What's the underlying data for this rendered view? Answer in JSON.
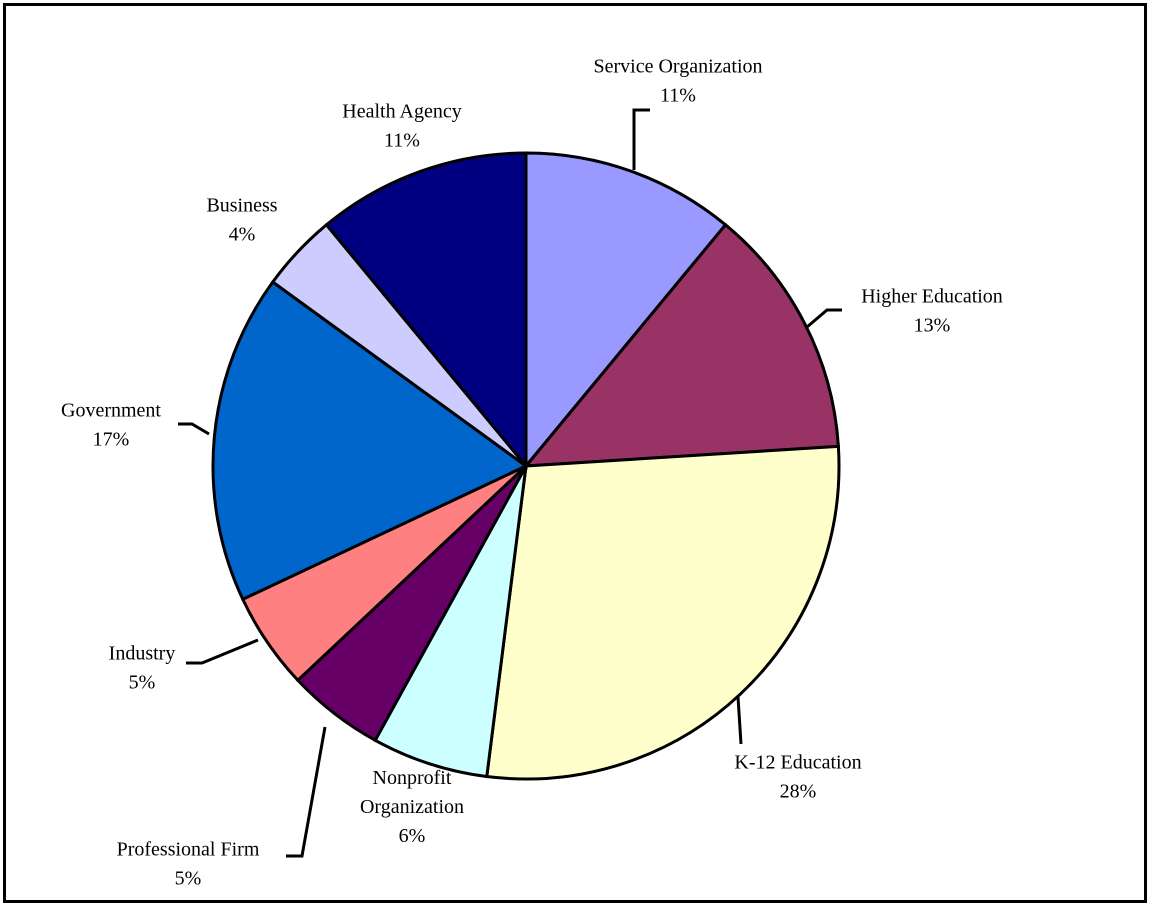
{
  "chart_data": {
    "type": "pie",
    "title": "",
    "start_angle_deg": 0,
    "direction": "clockwise",
    "slices": [
      {
        "label": "Service Organization",
        "percent_label": "11%",
        "value": 11,
        "color": "#9999FF"
      },
      {
        "label": "Higher Education",
        "percent_label": "13%",
        "value": 13,
        "color": "#993366"
      },
      {
        "label": "K-12 Education",
        "percent_label": "28%",
        "value": 28,
        "color": "#FFFFCC"
      },
      {
        "label": "Nonprofit Organization",
        "percent_label": "6%",
        "value": 6,
        "color": "#CCFFFF"
      },
      {
        "label": "Professional Firm",
        "percent_label": "5%",
        "value": 5,
        "color": "#660066"
      },
      {
        "label": "Industry",
        "percent_label": "5%",
        "value": 5,
        "color": "#FF8080"
      },
      {
        "label": "Government",
        "percent_label": "17%",
        "value": 17,
        "color": "#0066CC"
      },
      {
        "label": "Business",
        "percent_label": "4%",
        "value": 4,
        "color": "#CCCCFF"
      },
      {
        "label": "Health Agency",
        "percent_label": "11%",
        "value": 11,
        "color": "#000080"
      }
    ]
  }
}
